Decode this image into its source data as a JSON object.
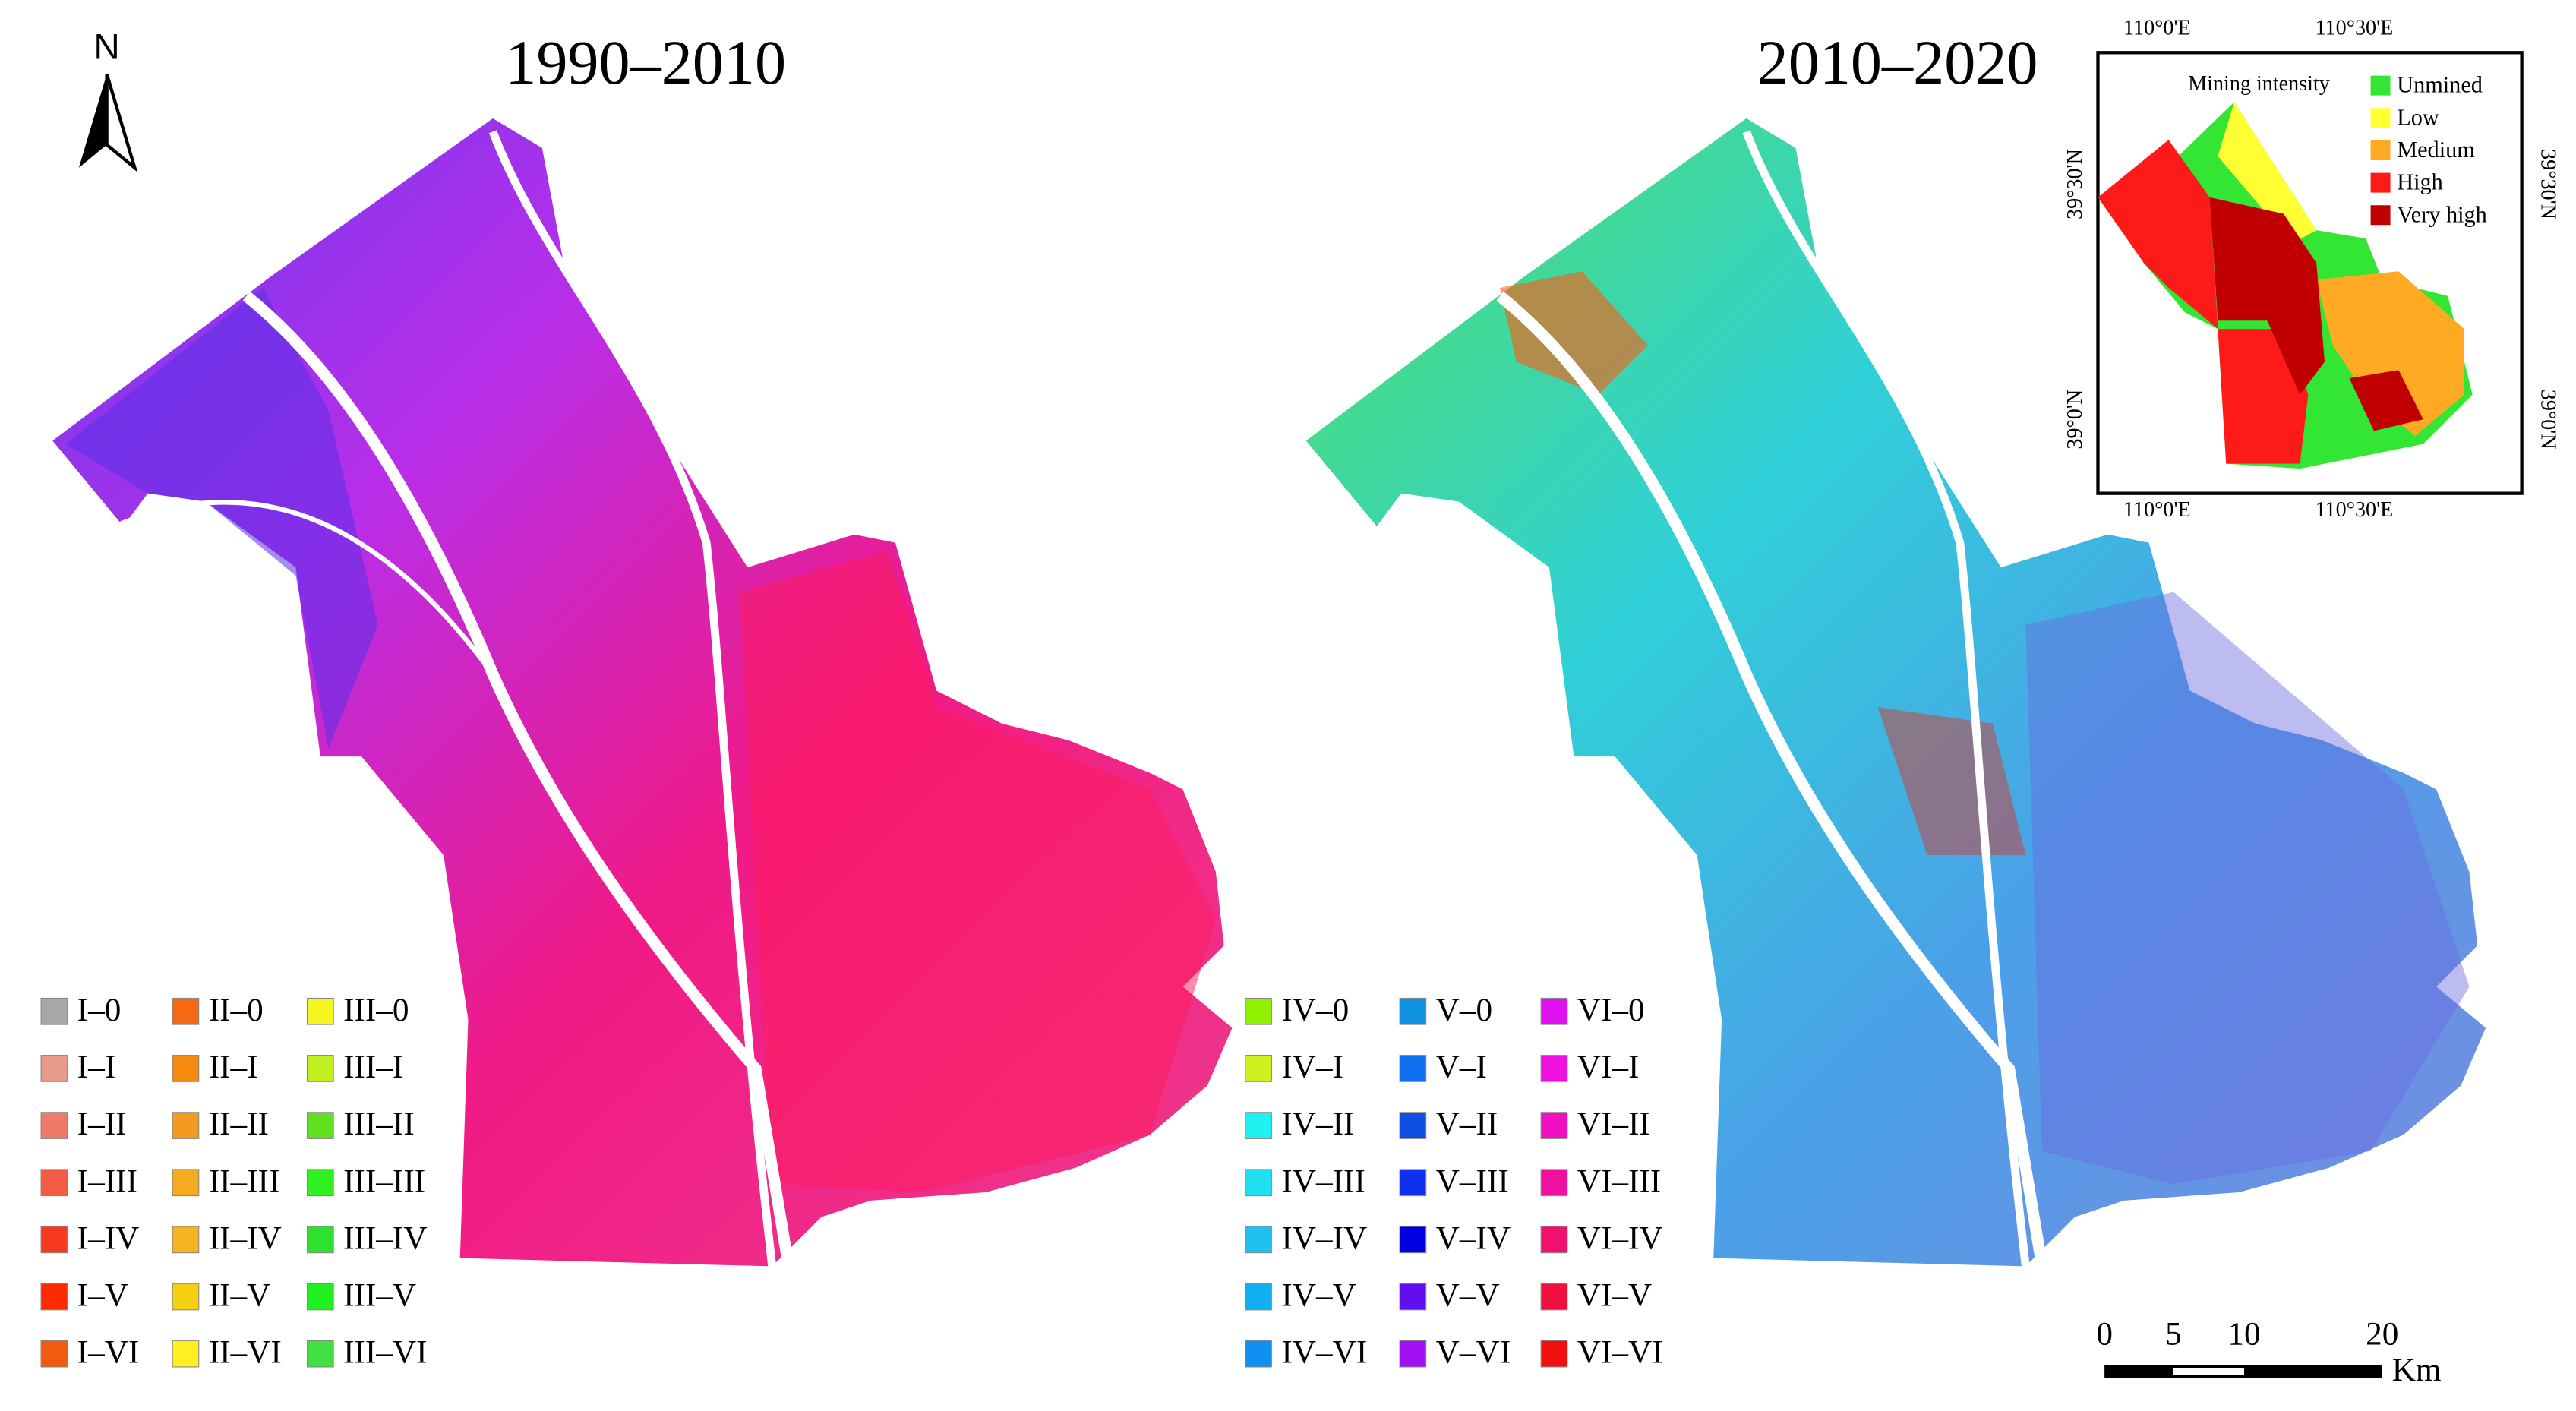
{
  "titles": [
    "1990–2010",
    "2010–2020"
  ],
  "north": "N",
  "legends": [
    {
      "items": [
        {
          "label": "I–0",
          "color": "#a8a8a8"
        },
        {
          "label": "I–I",
          "color": "#e89a8a"
        },
        {
          "label": "I–II",
          "color": "#f07a6a"
        },
        {
          "label": "I–III",
          "color": "#f55a45"
        },
        {
          "label": "I–IV",
          "color": "#f53a20"
        },
        {
          "label": "I–V",
          "color": "#ff2a00"
        },
        {
          "label": "I–VI",
          "color": "#f25a10"
        },
        {
          "label": "II–0",
          "color": "#f56a10"
        },
        {
          "label": "II–I",
          "color": "#f58a10"
        },
        {
          "label": "II–II",
          "color": "#f59a20"
        },
        {
          "label": "II–III",
          "color": "#f5aa20"
        },
        {
          "label": "II–IV",
          "color": "#f5b520"
        },
        {
          "label": "II–V",
          "color": "#f5d010"
        },
        {
          "label": "II–VI",
          "color": "#ffee20"
        },
        {
          "label": "III–0",
          "color": "#f5f520"
        },
        {
          "label": "III–I",
          "color": "#c0f020"
        },
        {
          "label": "III–II",
          "color": "#60e020"
        },
        {
          "label": "III–III",
          "color": "#30f020"
        },
        {
          "label": "III–IV",
          "color": "#30e030"
        },
        {
          "label": "III–V",
          "color": "#20f020"
        },
        {
          "label": "III–VI",
          "color": "#40e040"
        }
      ]
    },
    {
      "items": [
        {
          "label": "IV–0",
          "color": "#90f000"
        },
        {
          "label": "IV–I",
          "color": "#d0f020"
        },
        {
          "label": "IV–II",
          "color": "#20f0f0"
        },
        {
          "label": "IV–III",
          "color": "#20e0f0"
        },
        {
          "label": "IV–IV",
          "color": "#20c0f0"
        },
        {
          "label": "IV–V",
          "color": "#10b0f0"
        },
        {
          "label": "IV–VI",
          "color": "#1090f0"
        },
        {
          "label": "V–0",
          "color": "#1090e0"
        },
        {
          "label": "V–I",
          "color": "#1070f0"
        },
        {
          "label": "V–II",
          "color": "#1050e0"
        },
        {
          "label": "V–III",
          "color": "#1030f0"
        },
        {
          "label": "V–IV",
          "color": "#0000e0"
        },
        {
          "label": "V–V",
          "color": "#6010f0"
        },
        {
          "label": "V–VI",
          "color": "#a010f0"
        },
        {
          "label": "VI–0",
          "color": "#e010f0"
        },
        {
          "label": "VI–I",
          "color": "#f010e0"
        },
        {
          "label": "VI–II",
          "color": "#f010c0"
        },
        {
          "label": "VI–III",
          "color": "#f010a0"
        },
        {
          "label": "VI–IV",
          "color": "#f01070"
        },
        {
          "label": "VI–V",
          "color": "#f01040"
        },
        {
          "label": "VI–VI",
          "color": "#f01010"
        }
      ]
    }
  ],
  "inset": {
    "title": "Mining intensity",
    "items": [
      {
        "label": "Unmined",
        "color": "#33e633"
      },
      {
        "label": "Low",
        "color": "#ffff33"
      },
      {
        "label": "Medium",
        "color": "#ffaa22"
      },
      {
        "label": "High",
        "color": "#ff1a1a"
      },
      {
        "label": "Very high",
        "color": "#c00000"
      }
    ],
    "lon_labels": [
      "110°0'E",
      "110°30'E"
    ],
    "lat_labels": [
      "39°30'N",
      "39°0'N"
    ]
  },
  "scale_bar": {
    "labels": [
      "0",
      "5",
      "10",
      "20"
    ],
    "unit": "Km"
  }
}
